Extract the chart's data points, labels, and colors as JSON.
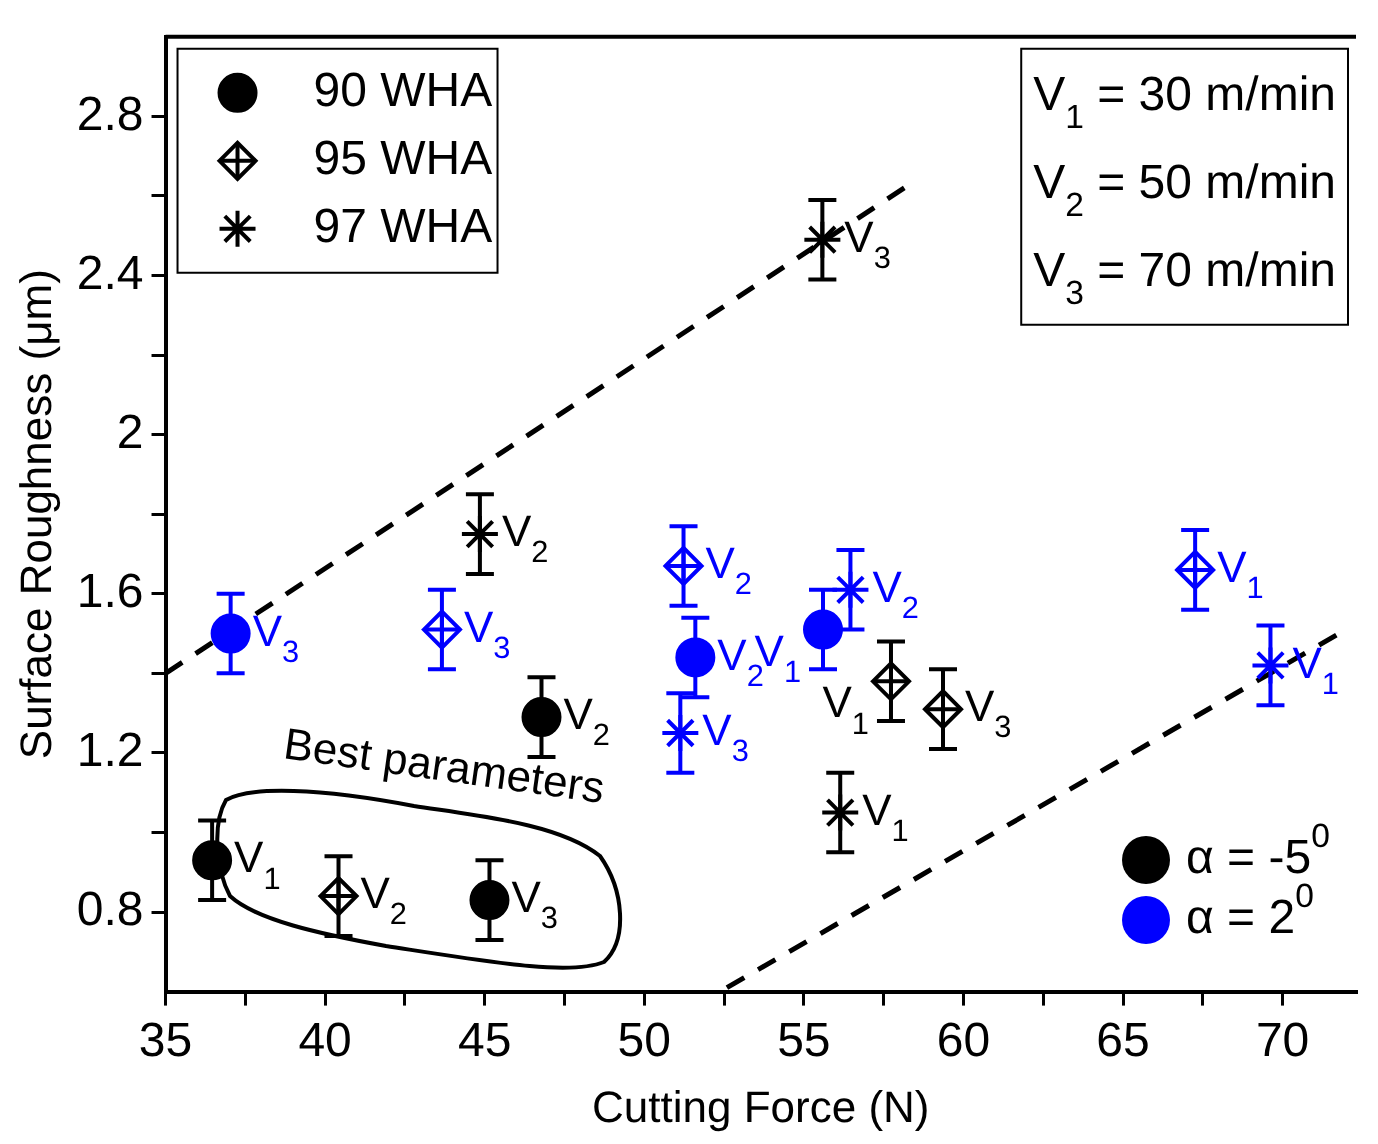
{
  "chart_data": {
    "type": "scatter",
    "xlabel": "Cutting Force (N)",
    "ylabel": "Surface Roughness (μm)",
    "xlim": [
      35,
      72.3
    ],
    "ylim": [
      0.6,
      3.0
    ],
    "xticks": [
      35,
      {
        "value": 37.5,
        "label": null
      },
      40,
      {
        "value": 42.5,
        "label": null
      },
      45,
      {
        "value": 47.5,
        "label": null
      },
      50,
      {
        "value": 52.5,
        "label": null
      },
      55,
      {
        "value": 57.5,
        "label": null
      },
      60,
      {
        "value": 62.5,
        "label": null
      },
      65,
      {
        "value": 67.5,
        "label": null
      },
      70
    ],
    "yticks": [
      0.8,
      {
        "value": 1.0,
        "label": null
      },
      1.2,
      {
        "value": 1.4,
        "label": null
      },
      1.6,
      {
        "value": 1.8,
        "label": null
      },
      2.0,
      {
        "value": 2.2,
        "label": null
      },
      2.4,
      {
        "value": 2.6,
        "label": null
      },
      2.8
    ],
    "grid": false,
    "legend": "top left",
    "series": [
      {
        "name": "90 WHA",
        "color": "#000000",
        "marker": "circle",
        "x": [
          36.46,
          45.15,
          46.78
        ],
        "values": [
          0.93,
          0.83,
          1.29
        ],
        "errors": [
          0.1,
          0.1,
          0.1
        ]
      },
      {
        "color": "#0000ff",
        "marker": "circle",
        "x": [
          37.04,
          51.6,
          55.6
        ],
        "values": [
          1.5,
          1.44,
          1.51
        ],
        "errors": [
          0.1,
          0.1,
          0.1
        ]
      },
      {
        "name": "95 WHA",
        "color": "#000000",
        "marker": "diamond",
        "x": [
          40.42,
          57.73,
          59.36
        ],
        "values": [
          0.84,
          1.38,
          1.31
        ],
        "errors": [
          0.1,
          0.1,
          0.1
        ]
      },
      {
        "color": "#0000ff",
        "marker": "diamond",
        "x": [
          43.66,
          51.23,
          67.26
        ],
        "values": [
          1.51,
          1.67,
          1.66
        ],
        "errors": [
          0.1,
          0.1,
          0.1
        ]
      },
      {
        "name": "97 WHA",
        "color": "#000000",
        "marker": "cross",
        "x": [
          44.85,
          55.58,
          56.14
        ],
        "values": [
          1.75,
          2.49,
          1.05
        ],
        "errors": [
          0.1,
          0.1,
          0.1
        ]
      },
      {
        "color": "#0000ff",
        "marker": "cross",
        "x": [
          51.13,
          56.46,
          69.62
        ],
        "values": [
          1.25,
          1.61,
          1.42
        ],
        "errors": [
          0.1,
          0.1,
          0.1
        ]
      },
      {
        "type": "line",
        "color": "#000000",
        "marker": "none",
        "line_style": "dashed",
        "x": [
          35,
          58.33
        ],
        "values": [
          1.4,
          2.63
        ]
      },
      {
        "type": "line",
        "color": "#000000",
        "marker": "none",
        "line_style": "dashed",
        "x": [
          52.59,
          71.77
        ],
        "values": [
          0.61,
          1.5
        ]
      }
    ],
    "annotations": [
      "V$_{1}$ = 30 m/min",
      "V$_{2}$ = 50 m/min",
      "V$_{3}$ = 70 m/min",
      "Best parameters",
      "α = -5$^{0}$",
      "α = 2$^{0}$",
      {
        "text": "V$_{1}$",
        "x": 36.46,
        "y": 0.93
      },
      {
        "text": "V$_{2}$",
        "x": 40.42,
        "y": 0.84
      },
      {
        "text": "V$_{3}$",
        "x": 45.15,
        "y": 0.83
      },
      {
        "text": "V$_{2}$",
        "x": 46.78,
        "y": 1.29
      },
      {
        "text": "V$_{3}$",
        "x": 37.04,
        "y": 1.5
      },
      {
        "text": "V$_{3}$",
        "x": 43.66,
        "y": 1.51
      },
      {
        "text": "V$_{2}$",
        "x": 44.85,
        "y": 1.75
      },
      {
        "text": "V$_{2}$",
        "x": 51.23,
        "y": 1.67
      },
      {
        "text": "V$_{2}$",
        "x": 51.6,
        "y": 1.44
      },
      {
        "text": "V$_{1}$",
        "x": 55.6,
        "y": 1.51
      },
      {
        "text": "V$_{3}$",
        "x": 51.13,
        "y": 1.25
      },
      {
        "text": "V$_{2}$",
        "x": 56.46,
        "y": 1.61
      },
      {
        "text": "V$_{3}$",
        "x": 55.58,
        "y": 2.49
      },
      {
        "text": "V$_{1}$",
        "x": 56.14,
        "y": 1.05
      },
      {
        "text": "V$_{1}$",
        "x": 57.73,
        "y": 1.38
      },
      {
        "text": "V$_{3}$",
        "x": 59.36,
        "y": 1.31
      },
      {
        "text": "V$_{1}$",
        "x": 67.26,
        "y": 1.66
      },
      {
        "text": "V$_{1}$",
        "x": 69.62,
        "y": 1.42
      }
    ]
  }
}
